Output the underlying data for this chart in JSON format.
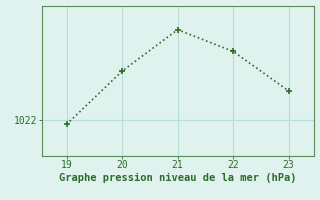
{
  "x": [
    19,
    20,
    21,
    22,
    23
  ],
  "y": [
    1021.8,
    1024.5,
    1026.6,
    1025.5,
    1023.5
  ],
  "line_color": "#2d6a2d",
  "marker_color": "#2d6a2d",
  "bg_color": "#dff2ee",
  "grid_color": "#b8ddd6",
  "spine_color": "#5a8a5a",
  "text_color": "#2d6a2d",
  "xlabel": "Graphe pression niveau de la mer (hPa)",
  "ytick_label": "1022",
  "ytick_value": 1022,
  "xlim": [
    18.55,
    23.45
  ],
  "ylim": [
    1020.2,
    1027.8
  ],
  "xticks": [
    19,
    20,
    21,
    22,
    23
  ],
  "yticks": [
    1022
  ],
  "xlabel_fontsize": 7.5,
  "tick_fontsize": 7
}
